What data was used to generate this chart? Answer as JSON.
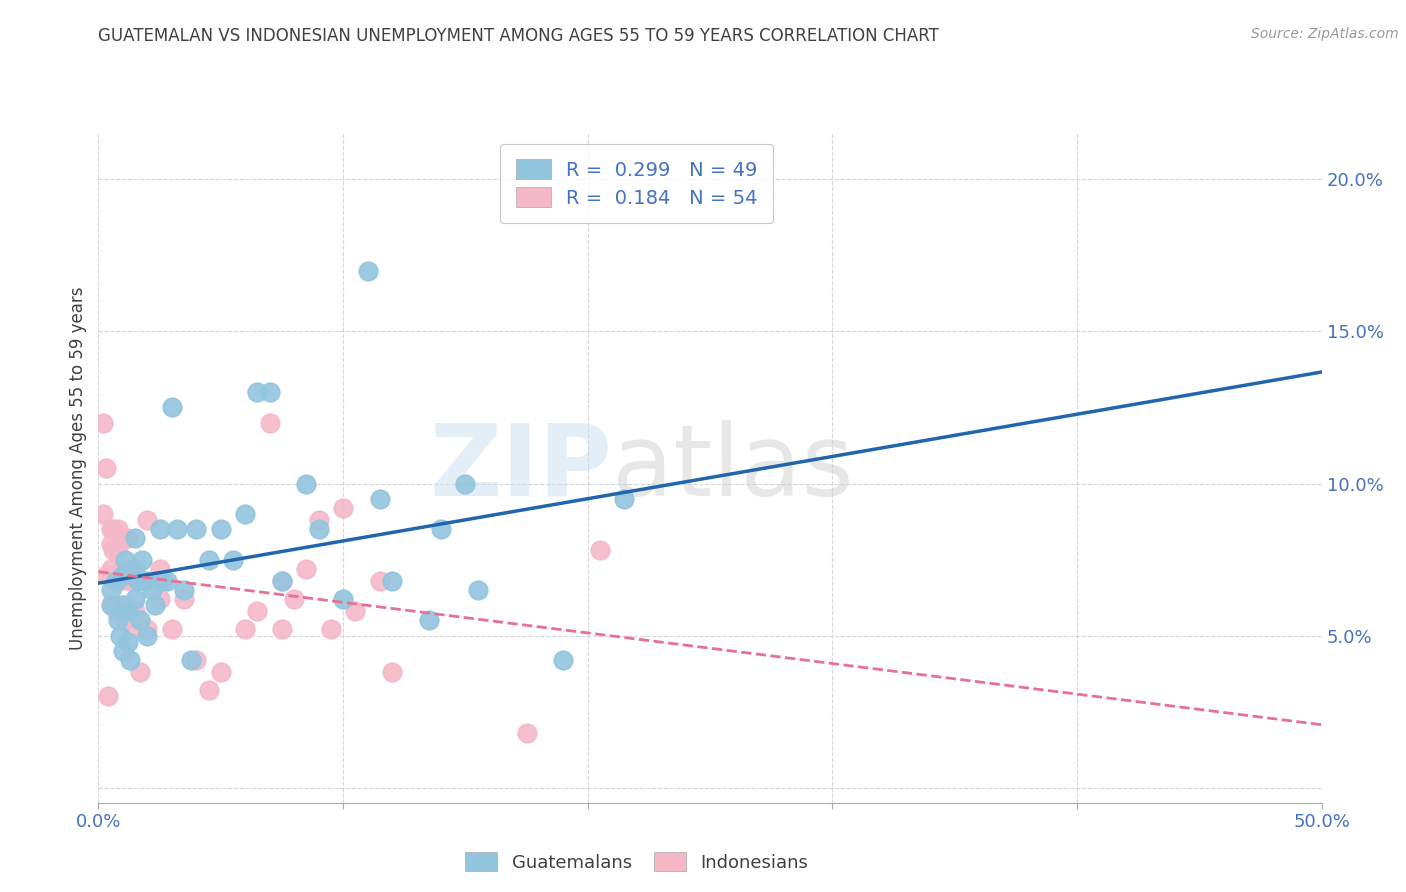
{
  "title": "GUATEMALAN VS INDONESIAN UNEMPLOYMENT AMONG AGES 55 TO 59 YEARS CORRELATION CHART",
  "source": "Source: ZipAtlas.com",
  "ylabel": "Unemployment Among Ages 55 to 59 years",
  "xlim": [
    0.0,
    0.5
  ],
  "ylim": [
    -0.005,
    0.215
  ],
  "xtick_positions": [
    0.0,
    0.1,
    0.2,
    0.3,
    0.4,
    0.5
  ],
  "ytick_positions": [
    0.0,
    0.05,
    0.1,
    0.15,
    0.2
  ],
  "ytick_labels": [
    "",
    "5.0%",
    "10.0%",
    "15.0%",
    "20.0%"
  ],
  "guatemalan_color": "#92c5de",
  "indonesian_color": "#f4b8c8",
  "guatemalan_line_color": "#2166ac",
  "indonesian_line_color": "#e87090",
  "guatemalan_R": "0.299",
  "guatemalan_N": "49",
  "indonesian_R": "0.184",
  "indonesian_N": "54",
  "watermark_zip": "ZIP",
  "watermark_atlas": "atlas",
  "legend_label_1": "Guatemalans",
  "legend_label_2": "Indonesians",
  "axis_color": "#4472c4",
  "r_n_color": "#4472c4",
  "title_color": "#404040",
  "grid_color": "#cccccc",
  "background_color": "#ffffff",
  "guatemalan_x": [
    0.005,
    0.005,
    0.007,
    0.008,
    0.009,
    0.01,
    0.01,
    0.01,
    0.011,
    0.012,
    0.012,
    0.013,
    0.015,
    0.015,
    0.015,
    0.016,
    0.017,
    0.018,
    0.019,
    0.02,
    0.022,
    0.023,
    0.025,
    0.026,
    0.028,
    0.03,
    0.032,
    0.035,
    0.038,
    0.04,
    0.045,
    0.05,
    0.055,
    0.06,
    0.065,
    0.07,
    0.075,
    0.085,
    0.09,
    0.1,
    0.11,
    0.115,
    0.12,
    0.135,
    0.14,
    0.15,
    0.155,
    0.19,
    0.215
  ],
  "guatemalan_y": [
    0.06,
    0.065,
    0.068,
    0.055,
    0.05,
    0.045,
    0.06,
    0.07,
    0.075,
    0.058,
    0.048,
    0.042,
    0.062,
    0.072,
    0.082,
    0.068,
    0.055,
    0.075,
    0.068,
    0.05,
    0.065,
    0.06,
    0.085,
    0.068,
    0.068,
    0.125,
    0.085,
    0.065,
    0.042,
    0.085,
    0.075,
    0.085,
    0.075,
    0.09,
    0.13,
    0.13,
    0.068,
    0.1,
    0.085,
    0.062,
    0.17,
    0.095,
    0.068,
    0.055,
    0.085,
    0.1,
    0.065,
    0.042,
    0.095
  ],
  "indonesian_x": [
    0.002,
    0.002,
    0.003,
    0.003,
    0.004,
    0.005,
    0.005,
    0.005,
    0.005,
    0.006,
    0.006,
    0.007,
    0.007,
    0.008,
    0.008,
    0.009,
    0.009,
    0.01,
    0.01,
    0.01,
    0.011,
    0.011,
    0.012,
    0.012,
    0.013,
    0.013,
    0.015,
    0.015,
    0.017,
    0.02,
    0.02,
    0.02,
    0.025,
    0.025,
    0.03,
    0.035,
    0.04,
    0.045,
    0.05,
    0.06,
    0.065,
    0.07,
    0.075,
    0.075,
    0.08,
    0.085,
    0.09,
    0.095,
    0.1,
    0.105,
    0.115,
    0.12,
    0.175,
    0.205
  ],
  "indonesian_y": [
    0.12,
    0.09,
    0.105,
    0.07,
    0.03,
    0.085,
    0.08,
    0.072,
    0.06,
    0.085,
    0.078,
    0.07,
    0.058,
    0.085,
    0.078,
    0.068,
    0.058,
    0.082,
    0.072,
    0.06,
    0.082,
    0.055,
    0.082,
    0.072,
    0.068,
    0.052,
    0.068,
    0.058,
    0.038,
    0.088,
    0.068,
    0.052,
    0.072,
    0.062,
    0.052,
    0.062,
    0.042,
    0.032,
    0.038,
    0.052,
    0.058,
    0.12,
    0.068,
    0.052,
    0.062,
    0.072,
    0.088,
    0.052,
    0.092,
    0.058,
    0.068,
    0.038,
    0.018,
    0.078
  ]
}
